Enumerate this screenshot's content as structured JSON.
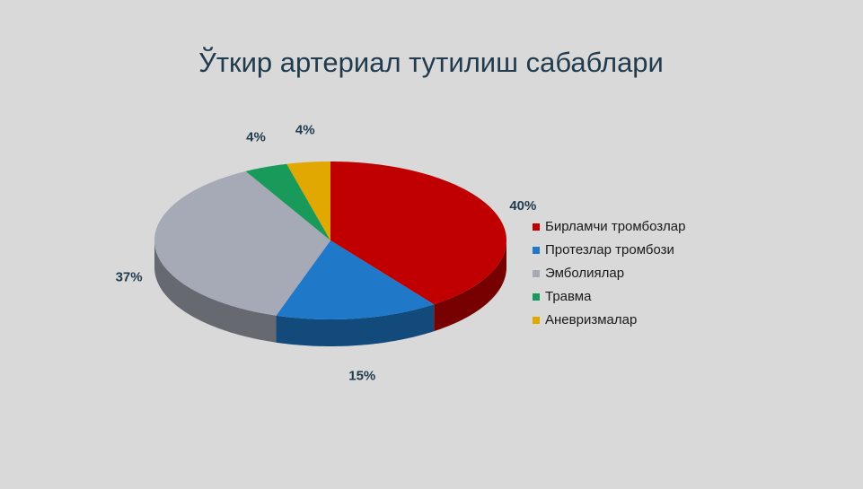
{
  "chart_data": {
    "type": "pie",
    "title": "Ўткир артериал тутилиш сабаблари",
    "categories": [
      "Бирламчи тромбозлар",
      "Протезлар тромбози",
      "Эмболиялар",
      "Травма",
      "Аневризмалар"
    ],
    "values": [
      40,
      15,
      37,
      4,
      4
    ],
    "value_labels": [
      "40%",
      "15%",
      "37%",
      "4%",
      "4%"
    ],
    "colors": [
      "#c00000",
      "#1f78c8",
      "#a6a9b6",
      "#1a9a5a",
      "#e0a800"
    ],
    "legend": "right"
  }
}
